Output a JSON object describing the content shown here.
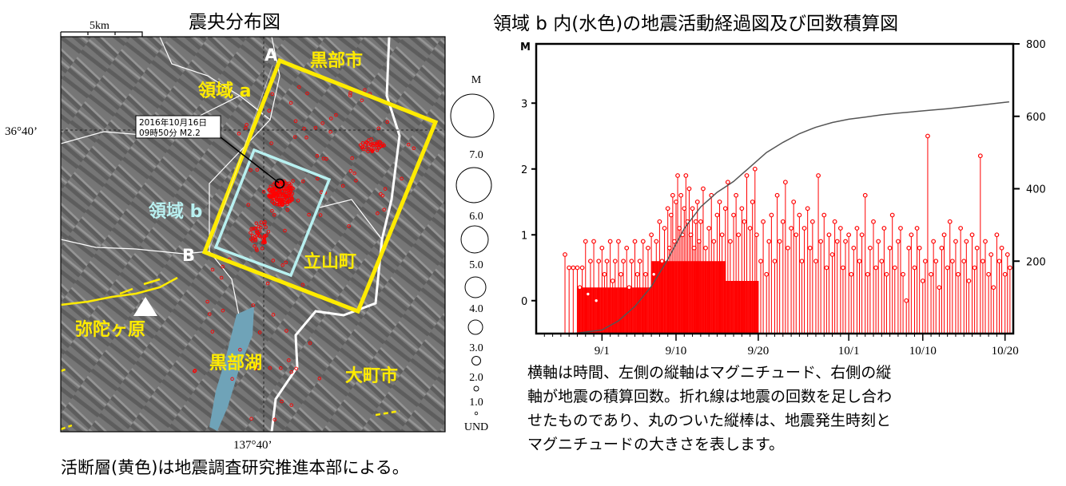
{
  "map": {
    "title": "震央分布図",
    "scale_label": "5km",
    "lat_label": "36°40’",
    "lon_label": "137°40’",
    "callout_lines": [
      "2016年10月16日",
      "09時50分 M2.2"
    ],
    "labels": {
      "region_a": "領域 a",
      "region_b": "領域 b",
      "point_A": "A",
      "point_B": "B",
      "kurobe_city": "黒部市",
      "tateyama": "立山町",
      "midagahara": "弥陀ヶ原",
      "kurobe_lake": "黒部湖",
      "omachi": "大町市"
    },
    "magnitude_legend": {
      "header": "M",
      "levels": [
        "7.0",
        "6.0",
        "5.0",
        "4.0",
        "3.0",
        "2.0",
        "1.0",
        "UND"
      ]
    },
    "colors": {
      "region_a": "#ffeb00",
      "region_b": "#b8f0f0",
      "epicenter": "#ff0000",
      "lake": "#6fa3b8",
      "place_label": "#ffeb00"
    },
    "caption": "活断層(黄色)は地震調査研究推進本部による。"
  },
  "chart_data": {
    "type": "line",
    "title": "領域 b 内(水色)の地震活動経過図及び回数積算図",
    "left_axis_label": "M",
    "left_ylim": [
      -0.5,
      3.9
    ],
    "left_ticks": [
      "0",
      "1",
      "2",
      "3"
    ],
    "right_ylim": [
      0,
      800
    ],
    "right_ticks": [
      "200",
      "400",
      "600",
      "800"
    ],
    "x_ticks": [
      "9/1",
      "9/10",
      "9/20",
      "10/1",
      "10/10",
      "10/20"
    ],
    "x_tick_days": [
      8,
      17,
      27,
      38,
      47,
      57
    ],
    "xlim_days": [
      0,
      58
    ],
    "cumulative_count": {
      "color": "#555555",
      "points": [
        [
          4.5,
          0
        ],
        [
          8,
          10
        ],
        [
          10,
          35
        ],
        [
          12,
          75
        ],
        [
          14,
          130
        ],
        [
          16,
          205
        ],
        [
          18,
          290
        ],
        [
          20,
          350
        ],
        [
          22,
          390
        ],
        [
          23,
          405
        ],
        [
          24,
          420
        ],
        [
          25,
          440
        ],
        [
          26,
          460
        ],
        [
          27,
          480
        ],
        [
          28,
          500
        ],
        [
          30,
          528
        ],
        [
          32,
          552
        ],
        [
          34,
          570
        ],
        [
          36,
          583
        ],
        [
          38,
          592
        ],
        [
          40,
          598
        ],
        [
          42,
          604
        ],
        [
          44,
          609
        ],
        [
          46,
          613
        ],
        [
          48,
          617
        ],
        [
          50,
          621
        ],
        [
          52,
          626
        ],
        [
          54,
          631
        ],
        [
          56,
          636
        ],
        [
          57.5,
          640
        ]
      ]
    },
    "events": {
      "color": "#ff0000",
      "items": [
        [
          3.5,
          0.7
        ],
        [
          4.0,
          0.5
        ],
        [
          4.5,
          0.5
        ],
        [
          5.0,
          0.5
        ],
        [
          5.3,
          0.2
        ],
        [
          5.6,
          0.5
        ],
        [
          6.0,
          0.9
        ],
        [
          6.3,
          0.1
        ],
        [
          6.6,
          0.6
        ],
        [
          7.0,
          0.9
        ],
        [
          7.3,
          0.0
        ],
        [
          7.6,
          0.6
        ],
        [
          8.0,
          0.8
        ],
        [
          8.3,
          0.4
        ],
        [
          8.6,
          0.6
        ],
        [
          9.0,
          0.9
        ],
        [
          9.3,
          0.3
        ],
        [
          9.6,
          0.6
        ],
        [
          10.0,
          0.9
        ],
        [
          10.3,
          0.4
        ],
        [
          10.6,
          0.6
        ],
        [
          11.0,
          0.8
        ],
        [
          11.3,
          0.2
        ],
        [
          11.6,
          0.6
        ],
        [
          12.0,
          0.9
        ],
        [
          12.3,
          0.4
        ],
        [
          12.6,
          0.6
        ],
        [
          13.0,
          0.9
        ],
        [
          13.3,
          0.4
        ],
        [
          13.6,
          0.8
        ],
        [
          14.0,
          1.0
        ],
        [
          14.3,
          0.4
        ],
        [
          14.6,
          0.9
        ],
        [
          15.0,
          1.2
        ],
        [
          15.3,
          0.6
        ],
        [
          15.6,
          1.1
        ],
        [
          16.0,
          1.4
        ],
        [
          16.2,
          0.8
        ],
        [
          16.4,
          1.3
        ],
        [
          16.6,
          1.6
        ],
        [
          16.8,
          0.9
        ],
        [
          17.0,
          1.5
        ],
        [
          17.2,
          1.9
        ],
        [
          17.4,
          1.1
        ],
        [
          17.6,
          1.6
        ],
        [
          17.8,
          1.0
        ],
        [
          18.0,
          1.4
        ],
        [
          18.2,
          1.9
        ],
        [
          18.4,
          1.2
        ],
        [
          18.6,
          1.7
        ],
        [
          18.8,
          1.0
        ],
        [
          19.0,
          1.4
        ],
        [
          19.2,
          0.8
        ],
        [
          19.4,
          1.2
        ],
        [
          19.6,
          1.5
        ],
        [
          19.8,
          0.9
        ],
        [
          20.0,
          1.2
        ],
        [
          20.3,
          1.7
        ],
        [
          20.6,
          0.8
        ],
        [
          21.0,
          1.1
        ],
        [
          21.3,
          1.6
        ],
        [
          21.6,
          0.9
        ],
        [
          22.0,
          1.3
        ],
        [
          22.3,
          1.5
        ],
        [
          22.6,
          1.0
        ],
        [
          23.0,
          1.4
        ],
        [
          23.3,
          1.8
        ],
        [
          23.6,
          0.9
        ],
        [
          24.0,
          1.3
        ],
        [
          24.3,
          1.6
        ],
        [
          24.6,
          1.0
        ],
        [
          25.0,
          1.4
        ],
        [
          25.3,
          1.2
        ],
        [
          25.6,
          1.9
        ],
        [
          26.0,
          1.1
        ],
        [
          26.3,
          1.5
        ],
        [
          26.6,
          2.0
        ],
        [
          26.8,
          1.0
        ],
        [
          27.3,
          0.6
        ],
        [
          27.6,
          1.2
        ],
        [
          28.0,
          0.4
        ],
        [
          28.3,
          0.9
        ],
        [
          28.6,
          1.3
        ],
        [
          29.0,
          0.6
        ],
        [
          29.3,
          1.6
        ],
        [
          29.6,
          0.9
        ],
        [
          30.0,
          1.2
        ],
        [
          30.3,
          1.8
        ],
        [
          30.6,
          0.8
        ],
        [
          31.0,
          1.1
        ],
        [
          31.3,
          1.5
        ],
        [
          31.6,
          1.0
        ],
        [
          32.0,
          1.3
        ],
        [
          32.3,
          0.6
        ],
        [
          32.6,
          1.1
        ],
        [
          33.0,
          1.4
        ],
        [
          33.3,
          0.8
        ],
        [
          33.6,
          1.2
        ],
        [
          34.0,
          0.6
        ],
        [
          34.3,
          1.9
        ],
        [
          34.6,
          0.9
        ],
        [
          35.0,
          1.3
        ],
        [
          35.3,
          0.5
        ],
        [
          35.6,
          1.0
        ],
        [
          36.0,
          0.7
        ],
        [
          36.3,
          1.2
        ],
        [
          36.6,
          0.9
        ],
        [
          37.0,
          1.1
        ],
        [
          37.3,
          0.5
        ],
        [
          37.6,
          0.9
        ],
        [
          38.0,
          1.0
        ],
        [
          38.3,
          0.4
        ],
        [
          38.6,
          0.8
        ],
        [
          39.0,
          1.1
        ],
        [
          39.3,
          0.6
        ],
        [
          39.6,
          1.0
        ],
        [
          40.0,
          1.6
        ],
        [
          40.3,
          0.4
        ],
        [
          40.6,
          0.8
        ],
        [
          41.0,
          1.2
        ],
        [
          41.3,
          0.5
        ],
        [
          41.6,
          0.9
        ],
        [
          42.0,
          0.6
        ],
        [
          42.3,
          1.1
        ],
        [
          42.6,
          0.4
        ],
        [
          43.0,
          0.8
        ],
        [
          43.3,
          1.3
        ],
        [
          43.6,
          0.5
        ],
        [
          44.0,
          0.9
        ],
        [
          44.3,
          1.1
        ],
        [
          44.6,
          0.4
        ],
        [
          45.0,
          0.0
        ],
        [
          45.3,
          0.8
        ],
        [
          45.6,
          1.0
        ],
        [
          46.0,
          0.5
        ],
        [
          46.3,
          1.1
        ],
        [
          46.6,
          0.8
        ],
        [
          47.0,
          0.3
        ],
        [
          47.3,
          0.6
        ],
        [
          47.6,
          2.5
        ],
        [
          48.0,
          0.4
        ],
        [
          48.3,
          0.9
        ],
        [
          48.6,
          0.6
        ],
        [
          49.0,
          0.2
        ],
        [
          49.3,
          0.8
        ],
        [
          49.6,
          1.0
        ],
        [
          50.0,
          0.5
        ],
        [
          50.3,
          1.2
        ],
        [
          50.6,
          0.6
        ],
        [
          51.0,
          0.9
        ],
        [
          51.3,
          0.4
        ],
        [
          51.6,
          1.1
        ],
        [
          52.0,
          0.6
        ],
        [
          52.3,
          0.9
        ],
        [
          52.6,
          0.3
        ],
        [
          53.0,
          1.0
        ],
        [
          53.3,
          0.5
        ],
        [
          53.6,
          0.8
        ],
        [
          54.0,
          2.2
        ],
        [
          54.3,
          0.6
        ],
        [
          54.6,
          0.9
        ],
        [
          55.0,
          0.4
        ],
        [
          55.3,
          0.7
        ],
        [
          55.6,
          0.2
        ],
        [
          56.0,
          1.0
        ],
        [
          56.3,
          0.6
        ],
        [
          56.6,
          0.8
        ],
        [
          57.0,
          0.4
        ],
        [
          57.3,
          0.7
        ],
        [
          57.6,
          0.5
        ]
      ]
    }
  },
  "chart_caption_lines": [
    "横軸は時間、左側の縦軸はマグニチュード、右側の縦",
    "軸が地震の積算回数。折れ線は地震の回数を足し合わ",
    "せたものであり、丸のついた縦棒は、地震発生時刻と",
    "マグニチュードの大きさを表します。"
  ]
}
